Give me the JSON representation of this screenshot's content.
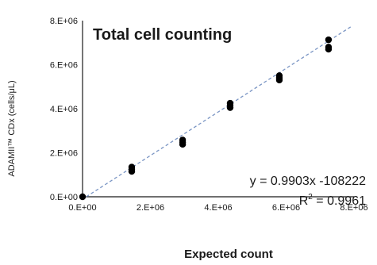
{
  "chart_data": {
    "type": "scatter",
    "title": "Total cell counting",
    "xlabel": "Expected count",
    "ylabel": "ADAMII™ CDx (cells/μL)",
    "xlim": [
      0,
      8000000
    ],
    "ylim": [
      0,
      8000000
    ],
    "x_ticks": [
      {
        "value": 0,
        "label": "0.E+00"
      },
      {
        "value": 2000000,
        "label": "2.E+06"
      },
      {
        "value": 4000000,
        "label": "4.E+06"
      },
      {
        "value": 6000000,
        "label": "6.E+06"
      },
      {
        "value": 8000000,
        "label": "8.E+06"
      }
    ],
    "y_ticks": [
      {
        "value": 0,
        "label": "0.E+00"
      },
      {
        "value": 2000000,
        "label": "2.E+06"
      },
      {
        "value": 4000000,
        "label": "4.E+06"
      },
      {
        "value": 6000000,
        "label": "6.E+06"
      },
      {
        "value": 8000000,
        "label": "8.E+06"
      }
    ],
    "grid": false,
    "series": [
      {
        "color": "#000000",
        "points": [
          {
            "x": 0,
            "y": 0
          },
          {
            "x": 1450000,
            "y": 1150000
          },
          {
            "x": 1450000,
            "y": 1250000
          },
          {
            "x": 1450000,
            "y": 1350000
          },
          {
            "x": 2950000,
            "y": 2380000
          },
          {
            "x": 2950000,
            "y": 2480000
          },
          {
            "x": 2950000,
            "y": 2580000
          },
          {
            "x": 4350000,
            "y": 4050000
          },
          {
            "x": 4350000,
            "y": 4150000
          },
          {
            "x": 4350000,
            "y": 4250000
          },
          {
            "x": 5800000,
            "y": 5300000
          },
          {
            "x": 5800000,
            "y": 5400000
          },
          {
            "x": 5800000,
            "y": 5500000
          },
          {
            "x": 7250000,
            "y": 6700000
          },
          {
            "x": 7250000,
            "y": 6800000
          },
          {
            "x": 7250000,
            "y": 7130000
          }
        ]
      }
    ],
    "trendline": {
      "slope": 0.9903,
      "intercept": -108222,
      "x_range": [
        0,
        7900000
      ],
      "color": "#7a95c4",
      "style": "dashed"
    },
    "annotation": {
      "equation": "y = 0.9903x -108222",
      "r2_prefix": "R",
      "r2_sup": "2",
      "r2_value": " = 0.9961"
    }
  }
}
